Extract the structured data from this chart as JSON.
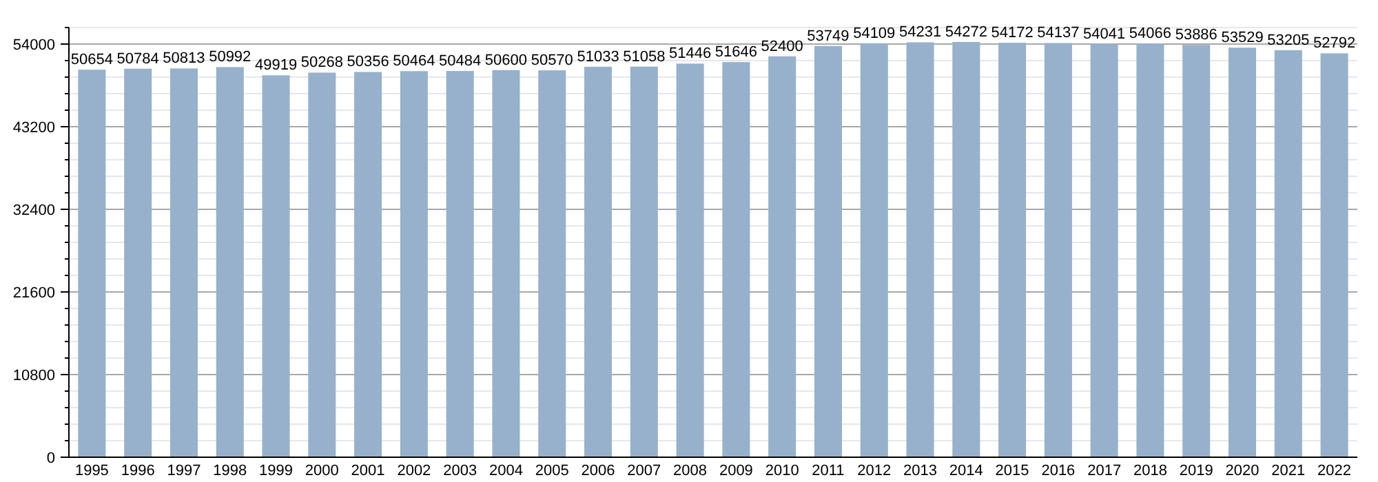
{
  "chart_data": {
    "type": "bar",
    "categories": [
      "1995",
      "1996",
      "1997",
      "1998",
      "1999",
      "2000",
      "2001",
      "2002",
      "2003",
      "2004",
      "2005",
      "2006",
      "2007",
      "2008",
      "2009",
      "2010",
      "2011",
      "2012",
      "2013",
      "2014",
      "2015",
      "2016",
      "2017",
      "2018",
      "2019",
      "2020",
      "2021",
      "2022"
    ],
    "values": [
      50654,
      50784,
      50813,
      50992,
      49919,
      50268,
      50356,
      50464,
      50484,
      50600,
      50570,
      51033,
      51058,
      51446,
      51646,
      52400,
      53749,
      54109,
      54231,
      54272,
      54172,
      54137,
      54041,
      54066,
      53886,
      53529,
      53205,
      52792
    ],
    "color": "#97b1cd",
    "ylim": [
      0,
      56160
    ],
    "yticks": [
      0,
      {
        "value": 2160,
        "label": null
      },
      {
        "value": 4320,
        "label": null
      },
      {
        "value": 6480,
        "label": null
      },
      {
        "value": 8640,
        "label": null
      },
      10800,
      {
        "value": 12960,
        "label": null
      },
      {
        "value": 15120,
        "label": null
      },
      {
        "value": 17280,
        "label": null
      },
      {
        "value": 19440,
        "label": null
      },
      21600,
      {
        "value": 23760,
        "label": null
      },
      {
        "value": 25920,
        "label": null
      },
      {
        "value": 28080,
        "label": null
      },
      {
        "value": 30240,
        "label": null
      },
      32400,
      {
        "value": 34560,
        "label": null
      },
      {
        "value": 36720,
        "label": null
      },
      {
        "value": 38880,
        "label": null
      },
      {
        "value": 41040,
        "label": null
      },
      43200,
      {
        "value": 45360,
        "label": null
      },
      {
        "value": 47520,
        "label": null
      },
      {
        "value": 49680,
        "label": null
      },
      {
        "value": 51840,
        "label": null
      },
      54000,
      {
        "value": 56160,
        "label": null
      }
    ],
    "grid": "y",
    "data_labels": true
  }
}
